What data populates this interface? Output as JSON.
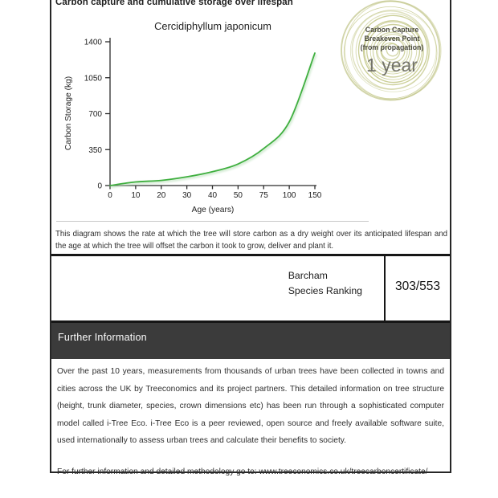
{
  "page": {
    "title": "Carbon capture and cumulative storage over lifespan"
  },
  "chart": {
    "title": "Cercidiphyllum japonicum",
    "ylabel": "Carbon Storage (kg)",
    "xlabel": "Age (years)",
    "y_ticks": [
      "1400",
      "1050",
      "700",
      "350",
      "0"
    ],
    "x_ticks": [
      "0",
      "10",
      "20",
      "30",
      "40",
      "50",
      "75",
      "100",
      "150"
    ]
  },
  "chart_data": {
    "type": "line",
    "title": "Cercidiphyllum japonicum",
    "xlabel": "Age (years)",
    "ylabel": "Carbon Storage (kg)",
    "x": [
      0,
      10,
      20,
      30,
      40,
      50,
      75,
      100,
      150
    ],
    "values": [
      0,
      35,
      50,
      85,
      135,
      210,
      360,
      620,
      1290
    ],
    "ylim": [
      0,
      1400
    ],
    "y_tick_values": [
      0,
      350,
      700,
      1050,
      1400
    ],
    "x_axis_note": "tick marks evenly spaced despite non-uniform year intervals",
    "grid": false,
    "legend": "none",
    "series_color": "#3faf3f"
  },
  "badge": {
    "line1": "Carbon Capture",
    "line2": "Breakeven Point",
    "line3": "(from propagation)",
    "value": "1 year"
  },
  "description": "This diagram shows the rate at which the tree will store carbon as a dry weight over its anticipated lifespan and the age at which the tree will offset the carbon it took to grow, deliver and plant it.",
  "ranking": {
    "label_line1": "Barcham",
    "label_line2": "Species Ranking",
    "value": "303/553"
  },
  "further_info": {
    "header": "Further Information",
    "paragraph": "Over the past 10 years, measurements from thousands of urban trees have been collected in towns and cities across the UK by Treeconomics and its project partners. This detailed information on tree structure (height, trunk diameter, species, crown dimensions etc) has been run through a sophisticated computer model called i-Tree Eco. i-Tree Eco is a peer reviewed, open source and freely available software suite, used internationally to assess urban trees and calculate their benefits to society.",
    "footer": "For further information and detailed methodology go to: www.treeconomics.co.uk/treecarboncertificate/"
  },
  "colors": {
    "curve": "#3faf3f",
    "curve_glow": "#b9e0b9",
    "ring": "#c6ca8e",
    "ring_dark": "#b2b76f",
    "header_bar": "#3b3b3b"
  }
}
